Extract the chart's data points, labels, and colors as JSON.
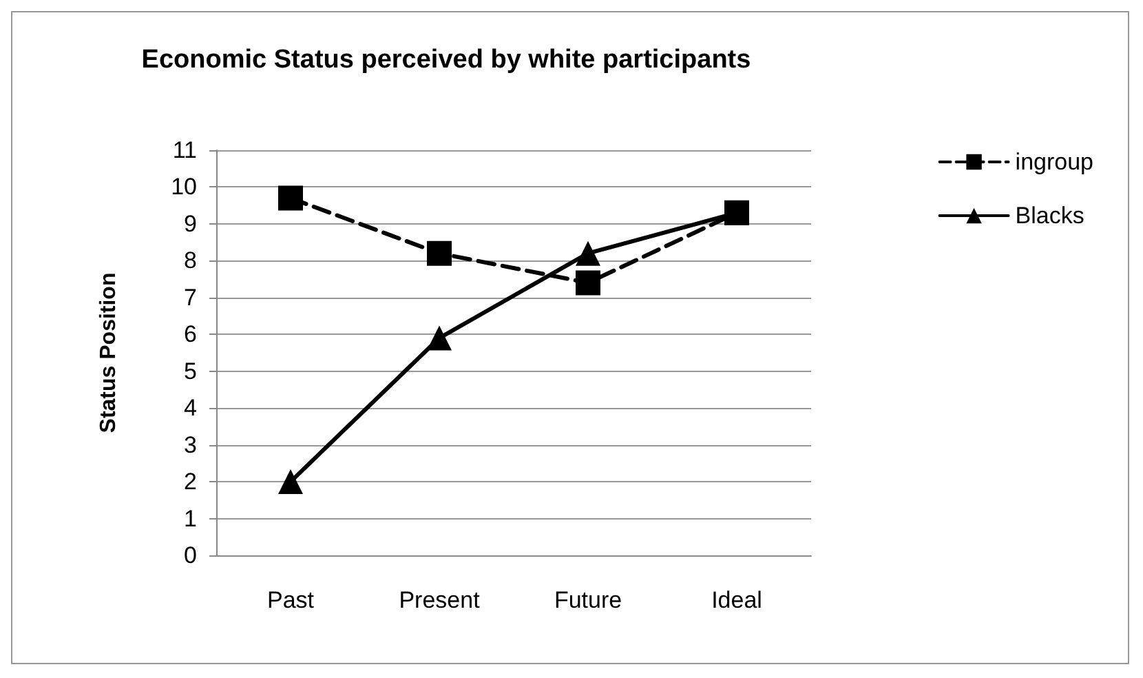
{
  "chart_data": {
    "type": "line",
    "title": "Economic Status perceived by white participants",
    "ylabel": "Status Position",
    "categories": [
      "Past",
      "Present",
      "Future",
      "Ideal"
    ],
    "series": [
      {
        "name": "ingroup",
        "color": "#000000",
        "values": [
          9.7,
          8.2,
          7.4,
          9.3
        ],
        "marker": "square",
        "line_style": "dashed"
      },
      {
        "name": "Blacks",
        "color": "#000000",
        "values": [
          2.0,
          5.9,
          8.2,
          9.3
        ],
        "marker": "triangle",
        "line_style": "solid"
      }
    ],
    "ylim": [
      0,
      11
    ],
    "yticks": [
      0,
      1,
      2,
      3,
      4,
      5,
      6,
      7,
      8,
      9,
      10,
      11
    ],
    "grid": "y",
    "legend": "top right"
  }
}
